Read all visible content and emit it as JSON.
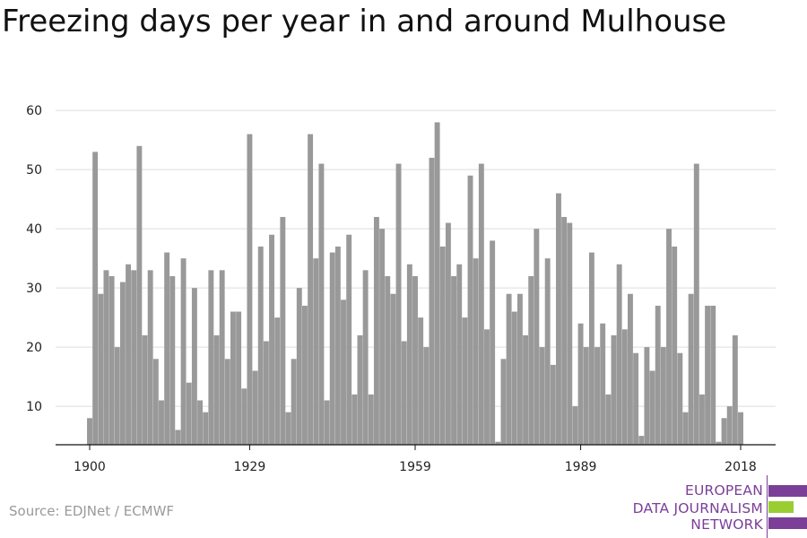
{
  "chart_data": {
    "type": "bar",
    "title": "Freezing days per year in and around Mulhouse",
    "xlabel": "",
    "ylabel": "",
    "x_range": [
      1900,
      2018
    ],
    "ylim": [
      3.5,
      62
    ],
    "y_ticks": [
      10,
      20,
      30,
      40,
      50,
      60
    ],
    "x_ticks": [
      1900,
      1929,
      1959,
      1989,
      2018
    ],
    "grid": true,
    "legend": "none",
    "bar_color": "#999999",
    "years_start": 1900,
    "values": [
      8,
      53,
      29,
      33,
      32,
      20,
      31,
      34,
      33,
      54,
      22,
      33,
      18,
      11,
      36,
      32,
      6,
      35,
      14,
      30,
      11,
      9,
      33,
      22,
      33,
      18,
      26,
      26,
      13,
      56,
      16,
      37,
      21,
      39,
      25,
      42,
      9,
      18,
      30,
      27,
      56,
      35,
      51,
      11,
      36,
      37,
      28,
      39,
      12,
      22,
      33,
      12,
      42,
      40,
      32,
      29,
      51,
      21,
      34,
      32,
      25,
      20,
      52,
      58,
      37,
      41,
      32,
      34,
      25,
      49,
      35,
      51,
      23,
      38,
      4,
      18,
      29,
      26,
      29,
      22,
      32,
      40,
      20,
      35,
      17,
      46,
      42,
      41,
      10,
      24,
      20,
      36,
      20,
      24,
      12,
      22,
      34,
      23,
      29,
      19,
      5,
      20,
      16,
      27,
      20,
      40,
      37,
      19,
      9,
      29,
      51,
      12,
      27,
      27,
      4,
      8,
      10,
      22,
      9
    ]
  },
  "footer": {
    "source": "Source: EDJNet / ECMWF"
  },
  "logo": {
    "line1": "EUROPEAN",
    "line2": "DATA JOURNALISM",
    "line3": "NETWORK",
    "purple": "#7b3f98",
    "green": "#9acd32"
  }
}
